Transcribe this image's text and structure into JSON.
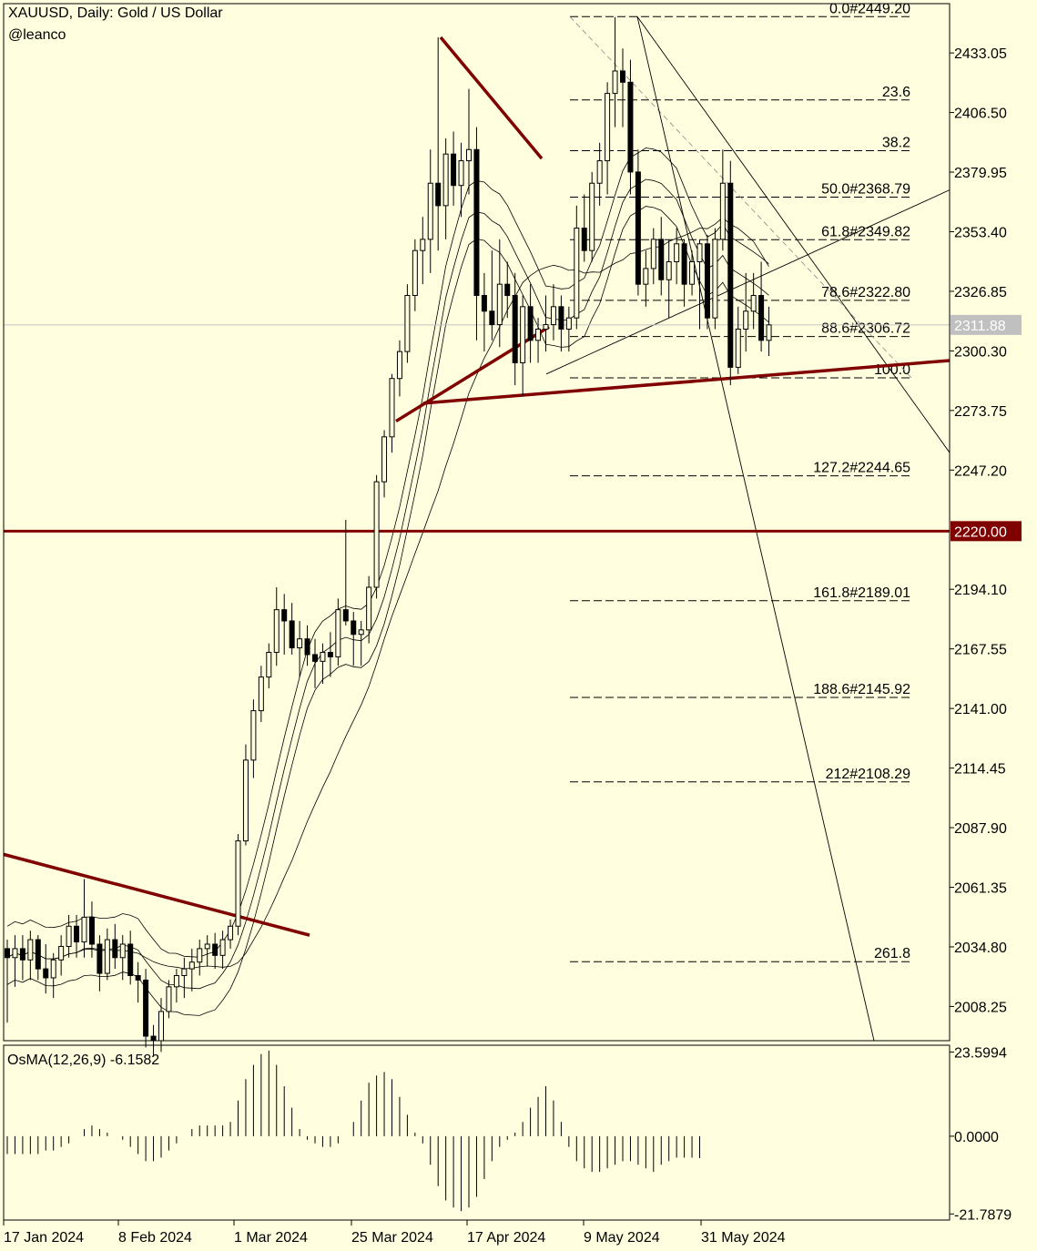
{
  "header": {
    "title": "XAUUSD, Daily:  Gold / US Dollar",
    "author": "@leanco"
  },
  "colors": {
    "background": "#FFFFE0",
    "foreground": "#000000",
    "trendline": "#800000",
    "price_label_bg": "#C0C0C0",
    "level_label_bg": "#800000"
  },
  "chart_data": [
    {
      "type": "candlestick",
      "title": "XAUUSD, Daily:  Gold / US Dollar",
      "x_ticks": [
        "17 Jan 2024",
        "8 Feb 2024",
        "1 Mar 2024",
        "25 Mar 2024",
        "17 Apr 2024",
        "9 May 2024",
        "31 May 2024"
      ],
      "y_ticks": [
        2433.05,
        2406.5,
        2379.95,
        2353.4,
        2326.85,
        2300.3,
        2273.75,
        2247.2,
        2194.1,
        2167.55,
        2141.0,
        2114.45,
        2087.9,
        2061.35,
        2034.8,
        2008.25
      ],
      "y_range": [
        1993,
        2455
      ],
      "current_price": "2311.88",
      "highlight_level": "2220.00",
      "fibonacci_levels": [
        {
          "label": "0.0#2449.20",
          "value": 2449.2
        },
        {
          "label": "23.6",
          "value": 2412.1
        },
        {
          "label": "38.2",
          "value": 2389.5
        },
        {
          "label": "50.0#2368.79",
          "value": 2368.79
        },
        {
          "label": "61.8#2349.82",
          "value": 2349.82
        },
        {
          "label": "78.6#2322.80",
          "value": 2322.8
        },
        {
          "label": "88.6#2306.72",
          "value": 2306.72
        },
        {
          "label": "100.0",
          "value": 2288.3
        },
        {
          "label": "127.2#2244.65",
          "value": 2244.65
        },
        {
          "label": "161.8#2189.01",
          "value": 2189.01
        },
        {
          "label": "188.6#2145.92",
          "value": 2145.92
        },
        {
          "label": "212#2108.29",
          "value": 2108.29
        },
        {
          "label": "261.8",
          "value": 2028.2
        }
      ],
      "candles": [
        [
          2034,
          2038,
          2001,
          2030
        ],
        [
          2030,
          2040,
          2017,
          2034
        ],
        [
          2034,
          2040,
          2020,
          2029
        ],
        [
          2029,
          2042,
          2020,
          2038
        ],
        [
          2038,
          2040,
          2020,
          2025
        ],
        [
          2025,
          2036,
          2014,
          2021
        ],
        [
          2021,
          2032,
          2012,
          2029
        ],
        [
          2029,
          2040,
          2022,
          2035
        ],
        [
          2035,
          2049,
          2030,
          2044
        ],
        [
          2044,
          2049,
          2030,
          2037
        ],
        [
          2037,
          2065,
          2030,
          2048
        ],
        [
          2048,
          2055,
          2030,
          2036
        ],
        [
          2036,
          2040,
          2015,
          2023
        ],
        [
          2023,
          2043,
          2020,
          2038
        ],
        [
          2038,
          2045,
          2025,
          2030
        ],
        [
          2030,
          2040,
          2020,
          2036
        ],
        [
          2036,
          2042,
          2018,
          2022
        ],
        [
          2022,
          2028,
          2010,
          2020
        ],
        [
          2020,
          2025,
          1990,
          1995
        ],
        [
          1995,
          2000,
          1986,
          1993
        ],
        [
          1993,
          2012,
          1988,
          2006
        ],
        [
          2006,
          2020,
          2003,
          2017
        ],
        [
          2017,
          2025,
          2010,
          2022
        ],
        [
          2022,
          2030,
          2012,
          2025
        ],
        [
          2025,
          2034,
          2015,
          2028
        ],
        [
          2028,
          2038,
          2022,
          2034
        ],
        [
          2034,
          2040,
          2026,
          2036
        ],
        [
          2036,
          2041,
          2025,
          2031
        ],
        [
          2031,
          2042,
          2025,
          2038
        ],
        [
          2038,
          2047,
          2034,
          2044
        ],
        [
          2044,
          2085,
          2040,
          2082
        ],
        [
          2082,
          2125,
          2080,
          2118
        ],
        [
          2118,
          2145,
          2110,
          2140
        ],
        [
          2140,
          2160,
          2135,
          2155
        ],
        [
          2155,
          2170,
          2150,
          2166
        ],
        [
          2166,
          2195,
          2160,
          2185
        ],
        [
          2185,
          2192,
          2165,
          2180
        ],
        [
          2180,
          2188,
          2165,
          2168
        ],
        [
          2168,
          2180,
          2155,
          2172
        ],
        [
          2172,
          2178,
          2160,
          2165
        ],
        [
          2165,
          2172,
          2150,
          2162
        ],
        [
          2162,
          2170,
          2152,
          2166
        ],
        [
          2166,
          2175,
          2155,
          2164
        ],
        [
          2164,
          2190,
          2160,
          2185
        ],
        [
          2185,
          2225,
          2178,
          2180
        ],
        [
          2180,
          2184,
          2160,
          2174
        ],
        [
          2174,
          2180,
          2160,
          2176
        ],
        [
          2176,
          2200,
          2170,
          2195
        ],
        [
          2195,
          2245,
          2190,
          2242
        ],
        [
          2242,
          2265,
          2235,
          2262
        ],
        [
          2262,
          2290,
          2255,
          2288
        ],
        [
          2288,
          2305,
          2280,
          2300
        ],
        [
          2300,
          2330,
          2295,
          2325
        ],
        [
          2325,
          2350,
          2318,
          2345
        ],
        [
          2345,
          2360,
          2330,
          2350
        ],
        [
          2350,
          2390,
          2335,
          2375
        ],
        [
          2375,
          2440,
          2345,
          2365
        ],
        [
          2365,
          2395,
          2350,
          2388
        ],
        [
          2388,
          2398,
          2365,
          2374
        ],
        [
          2374,
          2393,
          2360,
          2385
        ],
        [
          2385,
          2417,
          2370,
          2390
        ],
        [
          2390,
          2400,
          2305,
          2325
        ],
        [
          2325,
          2335,
          2300,
          2318
        ],
        [
          2318,
          2345,
          2305,
          2312
        ],
        [
          2312,
          2350,
          2302,
          2330
        ],
        [
          2330,
          2340,
          2315,
          2325
        ],
        [
          2325,
          2335,
          2285,
          2295
        ],
        [
          2295,
          2325,
          2280,
          2320
        ],
        [
          2320,
          2330,
          2295,
          2305
        ],
        [
          2305,
          2315,
          2295,
          2310
        ],
        [
          2310,
          2325,
          2300,
          2312
        ],
        [
          2312,
          2330,
          2305,
          2320
        ],
        [
          2320,
          2325,
          2300,
          2310
        ],
        [
          2310,
          2320,
          2300,
          2315
        ],
        [
          2315,
          2365,
          2310,
          2355
        ],
        [
          2355,
          2370,
          2340,
          2345
        ],
        [
          2345,
          2380,
          2340,
          2375
        ],
        [
          2375,
          2393,
          2365,
          2385
        ],
        [
          2385,
          2420,
          2370,
          2415
        ],
        [
          2415,
          2449,
          2400,
          2425
        ],
        [
          2425,
          2435,
          2400,
          2420
        ],
        [
          2420,
          2430,
          2370,
          2380
        ],
        [
          2380,
          2390,
          2325,
          2330
        ],
        [
          2330,
          2345,
          2320,
          2337
        ],
        [
          2337,
          2355,
          2330,
          2350
        ],
        [
          2350,
          2360,
          2325,
          2332
        ],
        [
          2332,
          2350,
          2315,
          2340
        ],
        [
          2340,
          2355,
          2330,
          2348
        ],
        [
          2348,
          2350,
          2320,
          2330
        ],
        [
          2330,
          2345,
          2325,
          2340
        ],
        [
          2340,
          2350,
          2310,
          2348
        ],
        [
          2348,
          2352,
          2310,
          2315
        ],
        [
          2315,
          2355,
          2310,
          2350
        ],
        [
          2350,
          2390,
          2345,
          2375
        ],
        [
          2375,
          2385,
          2285,
          2293
        ],
        [
          2293,
          2320,
          2290,
          2310
        ],
        [
          2310,
          2335,
          2300,
          2318
        ],
        [
          2318,
          2335,
          2310,
          2325
        ],
        [
          2325,
          2340,
          2300,
          2305
        ],
        [
          2305,
          2320,
          2298,
          2311.88
        ]
      ]
    },
    {
      "type": "bar",
      "title": "OsMA(12,26,9) -6.1582",
      "y_ticks": [
        "23.5994",
        "0.0000",
        "-21.7879"
      ],
      "y_range": [
        -23.5,
        25.5
      ],
      "values": [
        -5,
        -5,
        -5,
        -5,
        -5,
        -4,
        -4,
        -3,
        -2,
        0,
        2,
        3,
        2,
        1,
        0,
        -1,
        -3,
        -5,
        -7,
        -7,
        -6,
        -4,
        -2,
        0,
        2,
        3,
        3,
        3,
        3,
        4,
        10,
        16,
        20,
        23,
        24,
        20,
        14,
        8,
        2,
        -1,
        -2,
        -3,
        -3,
        -2,
        0,
        4,
        10,
        15,
        17,
        18,
        16,
        11,
        6,
        1,
        -2,
        -8,
        -14,
        -18,
        -20,
        -21,
        -20,
        -17,
        -12,
        -7,
        -3,
        -1,
        1,
        4,
        8,
        11,
        14,
        10,
        4,
        -3,
        -7,
        -9,
        -10,
        -10,
        -9,
        -8,
        -7,
        -7,
        -8,
        -9,
        -10,
        -8,
        -7,
        -6,
        -6,
        -6,
        -6.1582
      ]
    }
  ]
}
